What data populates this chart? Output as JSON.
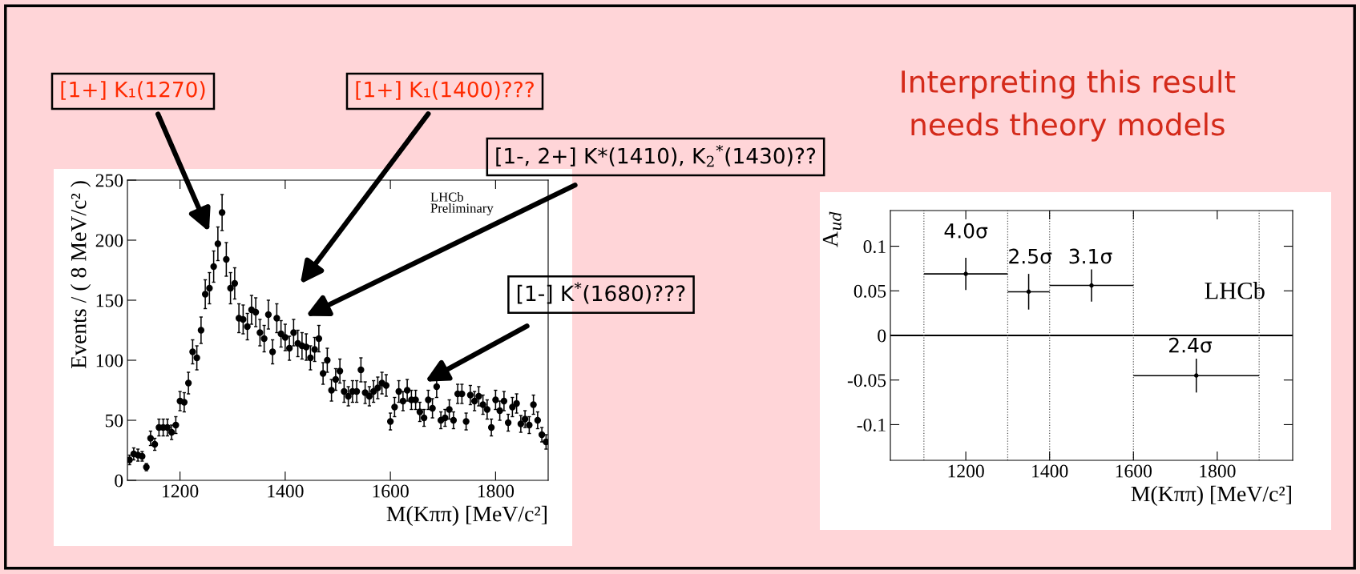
{
  "chart_data": [
    {
      "type": "scatter",
      "xlabel": "M(Kππ) [MeV/c²]",
      "ylabel": "Events / ( 8 MeV/c² )",
      "x": [
        1104,
        1112,
        1120,
        1128,
        1136,
        1144,
        1152,
        1160,
        1168,
        1176,
        1184,
        1192,
        1200,
        1208,
        1216,
        1224,
        1232,
        1240,
        1248,
        1256,
        1264,
        1272,
        1280,
        1288,
        1296,
        1304,
        1312,
        1320,
        1328,
        1336,
        1344,
        1352,
        1360,
        1368,
        1376,
        1384,
        1392,
        1400,
        1408,
        1416,
        1424,
        1432,
        1440,
        1448,
        1456,
        1464,
        1472,
        1480,
        1488,
        1496,
        1504,
        1512,
        1520,
        1528,
        1536,
        1544,
        1552,
        1560,
        1568,
        1576,
        1584,
        1592,
        1600,
        1608,
        1616,
        1624,
        1632,
        1640,
        1648,
        1656,
        1664,
        1672,
        1680,
        1688,
        1696,
        1704,
        1712,
        1720,
        1728,
        1736,
        1744,
        1752,
        1760,
        1768,
        1776,
        1784,
        1792,
        1800,
        1808,
        1816,
        1824,
        1832,
        1840,
        1848,
        1856,
        1864,
        1872,
        1880,
        1888,
        1896
      ],
      "series": [
        {
          "color": "#000000",
          "values": [
            17,
            22,
            21,
            20,
            11,
            35,
            30,
            44,
            44,
            44,
            40,
            46,
            66,
            65,
            81,
            107,
            102,
            125,
            155,
            160,
            178,
            197,
            223,
            184,
            160,
            164,
            135,
            134,
            128,
            142,
            140,
            123,
            118,
            138,
            107,
            135,
            122,
            119,
            110,
            123,
            114,
            112,
            111,
            102,
            109,
            118,
            89,
            100,
            75,
            84,
            91,
            74,
            70,
            74,
            74,
            92,
            73,
            70,
            74,
            77,
            81,
            79,
            49,
            61,
            74,
            66,
            75,
            67,
            67,
            57,
            52,
            67,
            60,
            78,
            50,
            52,
            59,
            50,
            72,
            72,
            49,
            71,
            66,
            70,
            63,
            59,
            44,
            67,
            58,
            66,
            48,
            61,
            64,
            47,
            51,
            46,
            63,
            50,
            38,
            32
          ],
          "errors": [
            4,
            5,
            5,
            4,
            3,
            6,
            5,
            7,
            7,
            7,
            6,
            7,
            8,
            8,
            9,
            10,
            10,
            11,
            12,
            13,
            13,
            14,
            15,
            14,
            13,
            13,
            12,
            12,
            11,
            12,
            12,
            11,
            11,
            12,
            10,
            12,
            11,
            11,
            10,
            11,
            11,
            11,
            11,
            10,
            10,
            11,
            9,
            10,
            9,
            9,
            10,
            9,
            8,
            9,
            9,
            10,
            9,
            8,
            9,
            9,
            9,
            9,
            7,
            8,
            9,
            8,
            9,
            8,
            8,
            8,
            7,
            8,
            8,
            9,
            7,
            7,
            8,
            7,
            8,
            8,
            7,
            8,
            8,
            8,
            8,
            8,
            7,
            8,
            8,
            8,
            7,
            8,
            8,
            7,
            7,
            7,
            8,
            7,
            6,
            6
          ]
        }
      ],
      "marker": "circle",
      "xlim": [
        1100,
        1900
      ],
      "ylim": [
        0,
        250
      ],
      "xticks": [
        1200,
        1400,
        1600,
        1800
      ],
      "yticks": [
        0,
        50,
        100,
        150,
        200,
        250
      ],
      "grid": false,
      "legend": false,
      "annotations": [
        "LHCb\nPreliminary",
        "[1+] K₁(1270)",
        "[1+] K₁(1400)???",
        "[1-, 2+] K*(1410), K$_{2}$$^{*}$(1430)??",
        "[1-] K$^{*}$(1680)???"
      ]
    },
    {
      "type": "scatter",
      "title": "Interpreting this result\nneeds theory models",
      "xlabel": "M(Kππ) [MeV/c²]",
      "ylabel": "A$_{ud}$",
      "x": [
        1200,
        1350,
        1500,
        1750
      ],
      "series": [
        {
          "color": "#000000",
          "values": [
            0.069,
            0.049,
            0.056,
            -0.045
          ],
          "errors": [
            0.018,
            0.02,
            0.018,
            0.019
          ],
          "xerrors": [
            100,
            50,
            100,
            150
          ]
        }
      ],
      "marker": "circle",
      "xlim": [
        1020,
        1980
      ],
      "ylim": [
        -0.14,
        0.14
      ],
      "xticks": [
        1200,
        1400,
        1600,
        1800
      ],
      "yticks": [
        {
          "value": -0.1,
          "label": "-0.1"
        },
        {
          "value": -0.05,
          "label": "-0.05"
        },
        {
          "value": 0,
          "label": "0"
        },
        {
          "value": 0.05,
          "label": "0.05"
        },
        {
          "value": 0.1,
          "label": "0.1"
        }
      ],
      "grid": false,
      "legend": false,
      "ref_lines": [
        {
          "axis": "y",
          "value": 0,
          "line_style": "solid",
          "color": "#000000"
        },
        {
          "axis": "x",
          "value": 1100,
          "line_style": "dotted",
          "color": "#555555"
        },
        {
          "axis": "x",
          "value": 1300,
          "line_style": "dotted",
          "color": "#555555"
        },
        {
          "axis": "x",
          "value": 1400,
          "line_style": "dotted",
          "color": "#555555"
        },
        {
          "axis": "x",
          "value": 1600,
          "line_style": "dotted",
          "color": "#555555"
        },
        {
          "axis": "x",
          "value": 1900,
          "line_style": "dotted",
          "color": "#555555"
        }
      ],
      "annotations": [
        "LHCb",
        "4.0σ",
        "2.5σ",
        "3.1σ",
        "2.4σ"
      ]
    }
  ]
}
